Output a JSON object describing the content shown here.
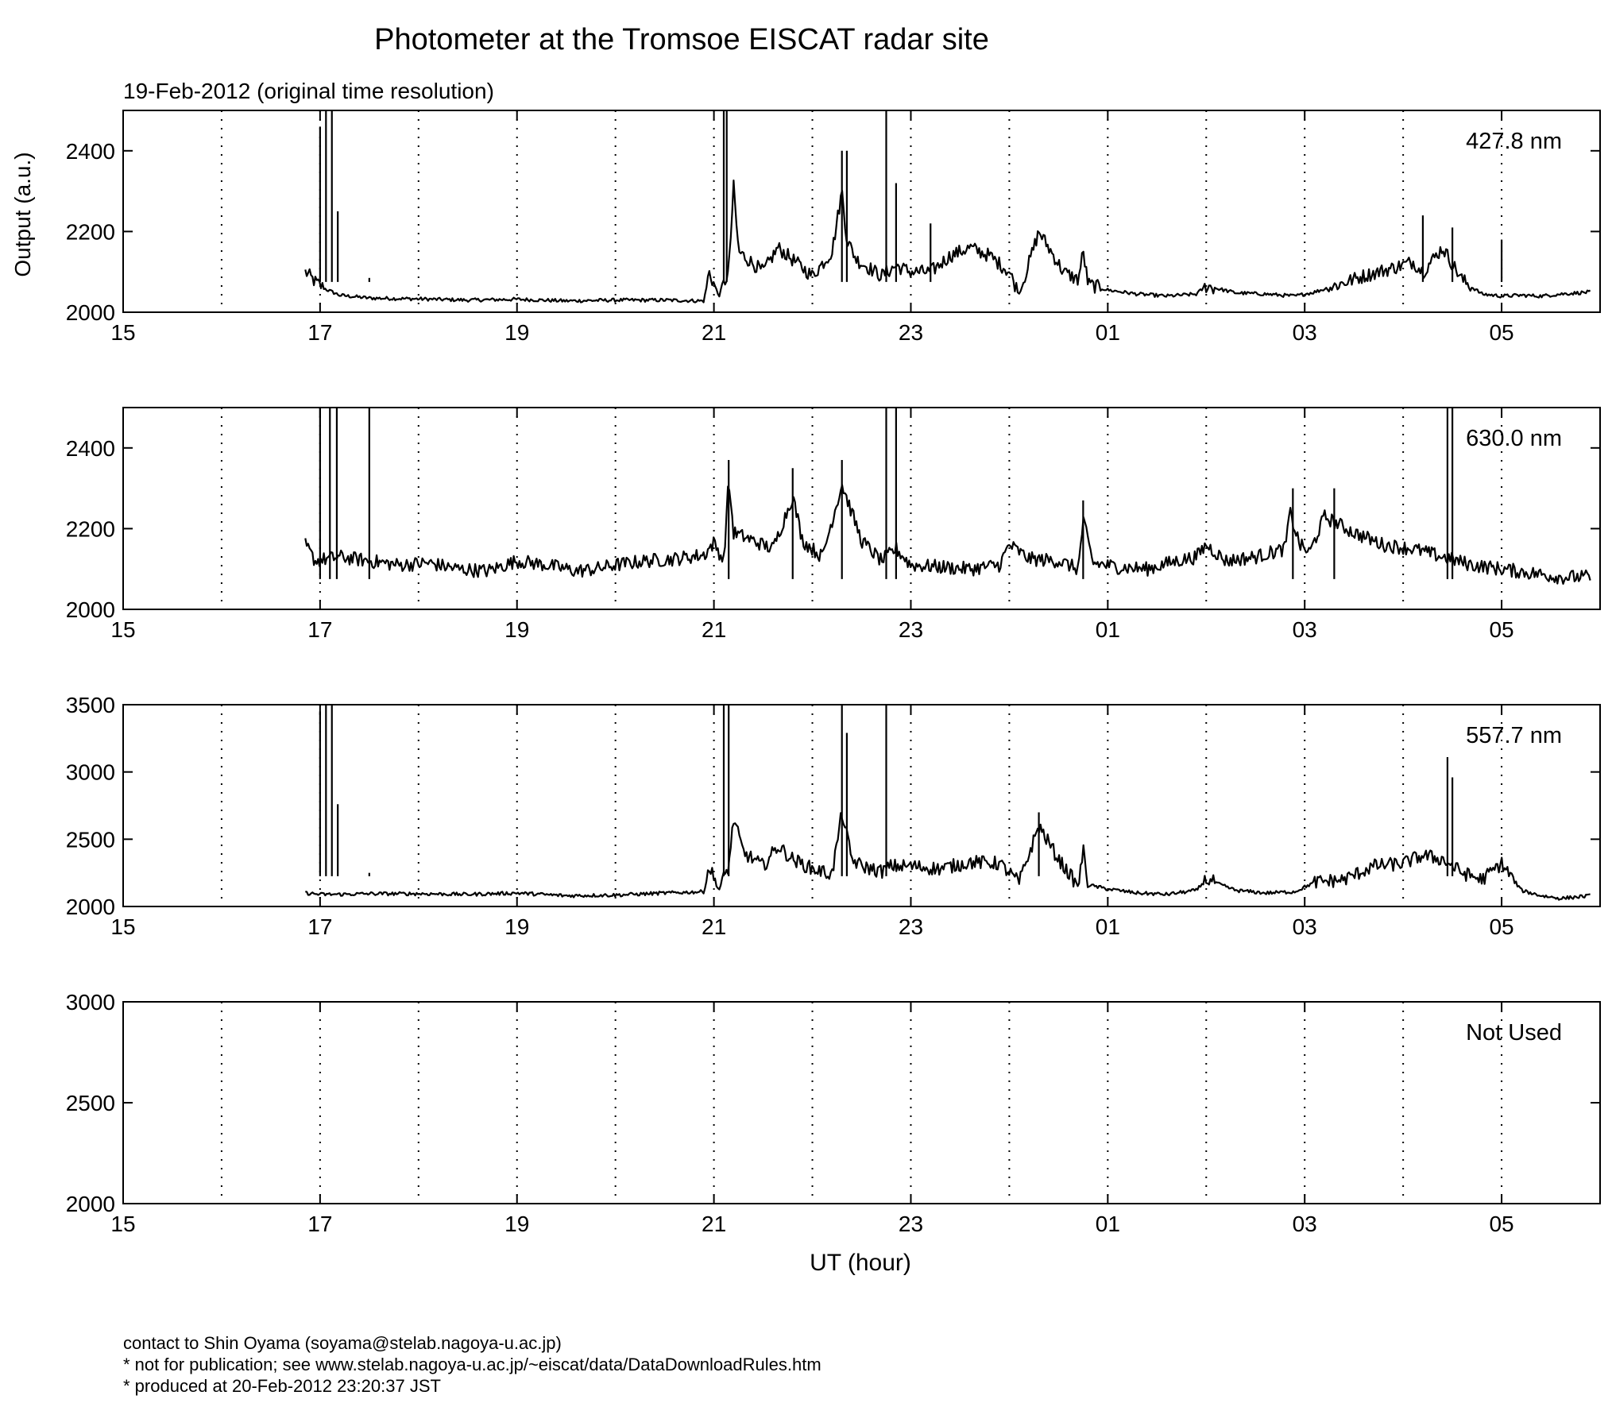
{
  "title": "Photometer at the Tromsoe EISCAT radar site",
  "subtitle": "19-Feb-2012 (original time resolution)",
  "ylabel": "Output (a.u.)",
  "xlabel": "UT (hour)",
  "footer": [
    "contact to Shin Oyama (soyama@stelab.nagoya-u.ac.jp)",
    "* not for publication; see www.stelab.nagoya-u.ac.jp/~eiscat/data/DataDownloadRules.htm",
    "* produced at 20-Feb-2012 23:20:37 JST"
  ],
  "chart_data": [
    {
      "type": "line",
      "label": "427.8 nm",
      "xlim": [
        15,
        30
      ],
      "ylim": [
        2000,
        2500
      ],
      "yticks": [
        2000,
        2200,
        2400
      ],
      "xticks": [
        "15",
        "17",
        "19",
        "21",
        "23",
        "01",
        "03",
        "05"
      ],
      "grid": "dotted vertical lines each hour",
      "x": [
        16.85,
        16.95,
        17.05,
        17.2,
        17.5,
        18.0,
        18.5,
        19.0,
        19.5,
        20.0,
        20.5,
        20.9,
        20.95,
        21.05,
        21.15,
        21.2,
        21.25,
        21.5,
        21.65,
        21.8,
        22.0,
        22.2,
        22.3,
        22.35,
        22.45,
        22.7,
        22.85,
        23.0,
        23.2,
        23.4,
        23.6,
        23.8,
        24.0,
        24.1,
        24.3,
        24.4,
        24.55,
        24.7,
        24.75,
        24.8,
        25.0,
        25.3,
        25.6,
        25.9,
        26.0,
        26.3,
        26.6,
        26.9,
        27.1,
        27.3,
        27.6,
        27.9,
        28.1,
        28.2,
        28.4,
        28.6,
        28.8,
        29.0,
        29.2,
        29.4,
        29.6,
        29.9
      ],
      "y": [
        2100,
        2075,
        2058,
        2042,
        2035,
        2033,
        2030,
        2032,
        2028,
        2030,
        2030,
        2028,
        2100,
        2040,
        2100,
        2310,
        2150,
        2100,
        2160,
        2130,
        2090,
        2150,
        2300,
        2180,
        2130,
        2090,
        2115,
        2100,
        2100,
        2140,
        2160,
        2140,
        2100,
        2045,
        2200,
        2160,
        2100,
        2080,
        2150,
        2070,
        2055,
        2045,
        2040,
        2045,
        2065,
        2048,
        2045,
        2040,
        2050,
        2065,
        2090,
        2110,
        2125,
        2100,
        2160,
        2080,
        2045,
        2040,
        2042,
        2040,
        2045,
        2050
      ],
      "spikes": [
        [
          17.0,
          2460
        ],
        [
          17.06,
          2500
        ],
        [
          17.12,
          2500
        ],
        [
          17.18,
          2250
        ],
        [
          17.5,
          2085
        ],
        [
          21.1,
          2500
        ],
        [
          21.13,
          2500
        ],
        [
          22.3,
          2400
        ],
        [
          22.35,
          2400
        ],
        [
          22.75,
          2500
        ],
        [
          22.85,
          2320
        ],
        [
          23.2,
          2220
        ],
        [
          28.2,
          2240
        ],
        [
          28.5,
          2210
        ],
        [
          29.0,
          2180
        ]
      ]
    },
    {
      "type": "line",
      "label": "630.0 nm",
      "xlim": [
        15,
        30
      ],
      "ylim": [
        2000,
        2500
      ],
      "yticks": [
        2000,
        2200,
        2400
      ],
      "xticks": [
        "15",
        "17",
        "19",
        "21",
        "23",
        "01",
        "03",
        "05"
      ],
      "grid": "dotted vertical lines each hour",
      "x": [
        16.85,
        16.95,
        17.2,
        17.5,
        17.8,
        18.1,
        18.4,
        18.7,
        19.0,
        19.3,
        19.6,
        19.8,
        20.0,
        20.3,
        20.6,
        20.9,
        21.0,
        21.1,
        21.15,
        21.2,
        21.3,
        21.6,
        21.8,
        21.9,
        22.1,
        22.3,
        22.5,
        22.7,
        22.85,
        23.0,
        23.3,
        23.6,
        23.9,
        24.0,
        24.2,
        24.5,
        24.7,
        24.75,
        24.85,
        25.1,
        25.4,
        25.7,
        25.9,
        26.0,
        26.2,
        26.5,
        26.8,
        26.85,
        26.95,
        27.05,
        27.2,
        27.5,
        27.8,
        28.1,
        28.4,
        28.7,
        29.0,
        29.3,
        29.6,
        29.9
      ],
      "y": [
        2160,
        2120,
        2130,
        2120,
        2110,
        2115,
        2100,
        2095,
        2120,
        2110,
        2095,
        2100,
        2110,
        2120,
        2125,
        2135,
        2165,
        2120,
        2320,
        2190,
        2180,
        2150,
        2280,
        2170,
        2130,
        2310,
        2170,
        2120,
        2150,
        2110,
        2105,
        2100,
        2110,
        2160,
        2125,
        2120,
        2100,
        2220,
        2115,
        2105,
        2100,
        2120,
        2130,
        2160,
        2120,
        2130,
        2150,
        2240,
        2160,
        2140,
        2230,
        2190,
        2160,
        2150,
        2130,
        2110,
        2100,
        2090,
        2080,
        2080
      ],
      "spikes": [
        [
          17.0,
          2500
        ],
        [
          17.1,
          2500
        ],
        [
          17.17,
          2500
        ],
        [
          17.5,
          2500
        ],
        [
          22.75,
          2500
        ],
        [
          22.85,
          2500
        ],
        [
          28.45,
          2500
        ],
        [
          28.5,
          2500
        ],
        [
          26.88,
          2300
        ],
        [
          27.3,
          2300
        ],
        [
          21.15,
          2370
        ],
        [
          21.8,
          2350
        ],
        [
          22.3,
          2370
        ],
        [
          24.75,
          2270
        ]
      ]
    },
    {
      "type": "line",
      "label": "557.7 nm",
      "xlim": [
        15,
        30
      ],
      "ylim": [
        2000,
        3500
      ],
      "yticks": [
        2000,
        2500,
        3000,
        3500
      ],
      "xticks": [
        "15",
        "17",
        "19",
        "21",
        "23",
        "01",
        "03",
        "05"
      ],
      "grid": "dotted vertical lines each hour",
      "x": [
        16.85,
        17.0,
        17.2,
        17.5,
        18.0,
        18.5,
        19.0,
        19.5,
        20.0,
        20.5,
        20.9,
        20.95,
        21.05,
        21.15,
        21.2,
        21.3,
        21.5,
        21.65,
        21.8,
        22.0,
        22.2,
        22.3,
        22.4,
        22.5,
        22.7,
        22.8,
        23.0,
        23.3,
        23.6,
        23.9,
        24.1,
        24.3,
        24.5,
        24.7,
        24.75,
        24.8,
        25.0,
        25.3,
        25.6,
        25.9,
        26.0,
        26.3,
        26.6,
        26.9,
        27.1,
        27.4,
        27.7,
        28.0,
        28.2,
        28.4,
        28.6,
        28.8,
        29.0,
        29.2,
        29.4,
        29.6,
        29.9
      ],
      "y": [
        2100,
        2090,
        2090,
        2095,
        2095,
        2090,
        2100,
        2080,
        2085,
        2100,
        2110,
        2300,
        2120,
        2300,
        2650,
        2400,
        2300,
        2450,
        2350,
        2280,
        2240,
        2700,
        2350,
        2300,
        2260,
        2300,
        2300,
        2280,
        2330,
        2320,
        2180,
        2600,
        2350,
        2150,
        2420,
        2160,
        2130,
        2100,
        2090,
        2120,
        2200,
        2120,
        2100,
        2110,
        2180,
        2200,
        2300,
        2320,
        2380,
        2350,
        2250,
        2200,
        2320,
        2120,
        2080,
        2060,
        2080
      ],
      "spikes": [
        [
          17.0,
          3450
        ],
        [
          17.06,
          3500
        ],
        [
          17.12,
          3500
        ],
        [
          17.18,
          2760
        ],
        [
          17.5,
          2250
        ],
        [
          21.1,
          3500
        ],
        [
          21.15,
          3500
        ],
        [
          22.3,
          3500
        ],
        [
          22.35,
          3290
        ],
        [
          22.75,
          3500
        ],
        [
          28.45,
          3110
        ],
        [
          28.5,
          2960
        ],
        [
          24.3,
          2700
        ]
      ]
    },
    {
      "type": "line",
      "label": "Not Used",
      "xlim": [
        15,
        30
      ],
      "ylim": [
        2000,
        3000
      ],
      "yticks": [
        2000,
        2500,
        3000
      ],
      "xticks": [
        "15",
        "17",
        "19",
        "21",
        "23",
        "01",
        "03",
        "05"
      ],
      "grid": "dotted vertical lines each hour",
      "x": [],
      "y": [],
      "spikes": []
    }
  ]
}
